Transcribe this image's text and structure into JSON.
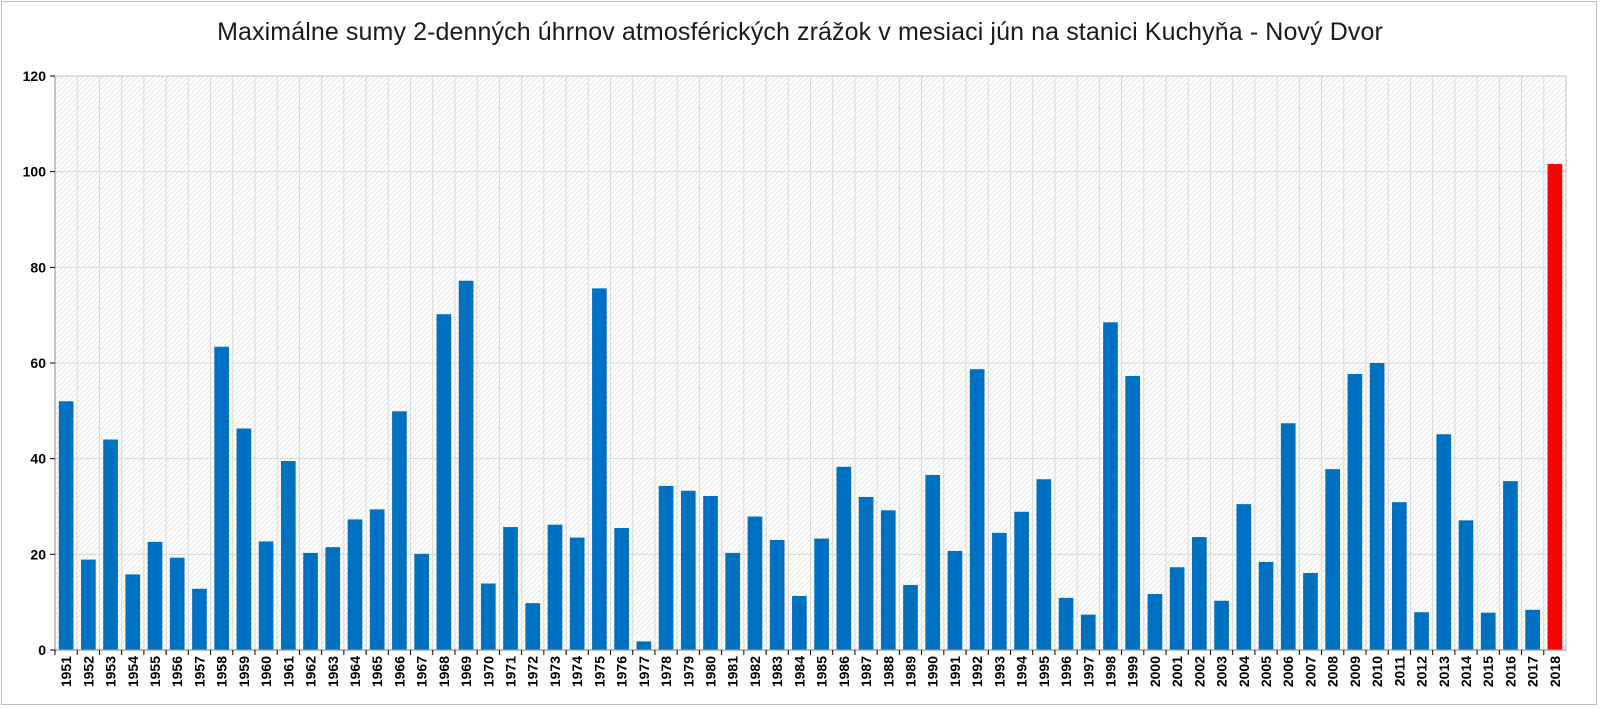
{
  "chart_data": {
    "type": "bar",
    "title": "Maximálne sumy 2-denných úhrnov atmosférických zrážok v mesiaci jún na stanici Kuchyňa - Nový Dvor",
    "xlabel": "",
    "ylabel": "",
    "ylim": [
      0,
      120
    ],
    "yticks": [
      "0",
      "20",
      "40",
      "60",
      "80",
      "100",
      "120"
    ],
    "grid": true,
    "colors": {
      "default": "#0070C0",
      "highlight": "#FF0000",
      "grid": "#d9d9d9",
      "hatch": "#e6e6e6"
    },
    "highlight_category": "2018",
    "categories": [
      "1951",
      "1952",
      "1953",
      "1954",
      "1955",
      "1956",
      "1957",
      "1958",
      "1959",
      "1960",
      "1961",
      "1962",
      "1963",
      "1964",
      "1965",
      "1966",
      "1967",
      "1968",
      "1969",
      "1970",
      "1971",
      "1972",
      "1973",
      "1974",
      "1975",
      "1976",
      "1977",
      "1978",
      "1979",
      "1980",
      "1981",
      "1982",
      "1983",
      "1984",
      "1985",
      "1986",
      "1987",
      "1988",
      "1989",
      "1990",
      "1991",
      "1992",
      "1993",
      "1994",
      "1995",
      "1996",
      "1997",
      "1998",
      "1999",
      "2000",
      "2001",
      "2002",
      "2003",
      "2004",
      "2005",
      "2006",
      "2007",
      "2008",
      "2009",
      "2010",
      "2011",
      "2012",
      "2013",
      "2014",
      "2015",
      "2016",
      "2017",
      "2018"
    ],
    "values": [
      52.0,
      18.9,
      44.0,
      15.8,
      22.6,
      19.3,
      12.8,
      63.4,
      46.3,
      22.7,
      39.5,
      20.3,
      21.5,
      27.3,
      29.4,
      49.9,
      20.1,
      70.2,
      77.2,
      13.9,
      25.7,
      9.8,
      26.2,
      23.5,
      75.6,
      25.5,
      1.8,
      34.3,
      33.3,
      32.2,
      20.3,
      27.9,
      23.0,
      11.3,
      23.3,
      38.3,
      32.0,
      29.2,
      13.6,
      36.6,
      20.7,
      58.7,
      24.5,
      28.9,
      35.7,
      10.9,
      7.4,
      68.5,
      57.3,
      11.7,
      17.3,
      23.6,
      10.3,
      30.5,
      18.4,
      47.4,
      16.1,
      37.8,
      57.7,
      60.0,
      30.9,
      7.9,
      45.1,
      27.1,
      7.8,
      35.3,
      8.4,
      101.6
    ]
  }
}
